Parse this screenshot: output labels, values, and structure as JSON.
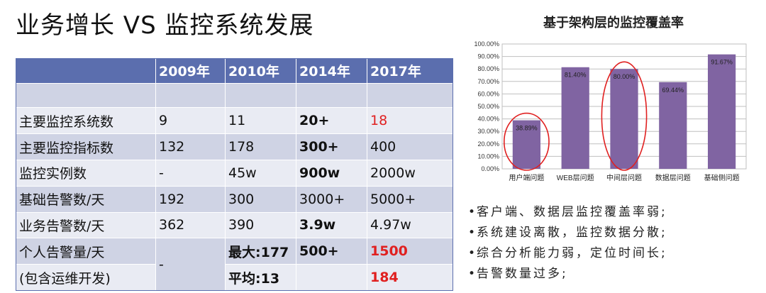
{
  "title": "业务增长 VS 监控系统发展",
  "table": {
    "headers": [
      "",
      "2009年",
      "2010年",
      "2014年",
      "2017年"
    ],
    "rows": [
      [
        "主要监控系统数",
        "9",
        "11",
        "20+",
        "18"
      ],
      [
        "主要监控指标数",
        "132",
        "178",
        "300+",
        "400"
      ],
      [
        "监控实例数",
        "-",
        "45w",
        "900w",
        "2000w"
      ],
      [
        "基础告警数/天",
        "192",
        "300",
        "3000+",
        "5000+"
      ],
      [
        "业务告警数/天",
        "362",
        "390",
        "3.9w",
        "4.97w"
      ]
    ],
    "group": {
      "label1": "个人告警量/天",
      "label2": "(包含运维开发)",
      "c2009": "-",
      "c2010_max": "最大:177",
      "c2010_avg": "平均:13",
      "c2014": "500+",
      "c2017_a": "1500",
      "c2017_b": "184"
    },
    "colors": {
      "header": "#5b6eae",
      "stripe_light": "#e9ebf3",
      "stripe_dark": "#cfd3e4",
      "highlight": "#e02020"
    }
  },
  "chart_data": {
    "type": "bar",
    "title": "基于架构层的监控覆盖率",
    "categories": [
      "用户端问题",
      "WEB层问题",
      "中间层问题",
      "数据层问题",
      "基础侧问题"
    ],
    "values": [
      38.89,
      81.4,
      80.0,
      69.44,
      91.67
    ],
    "data_labels": [
      "38.89%",
      "81.40%",
      "80.00%",
      "69.44%",
      "91.67%"
    ],
    "ylim": [
      0,
      100
    ],
    "yticks": [
      "0.00%",
      "10.00%",
      "20.00%",
      "30.00%",
      "40.00%",
      "50.00%",
      "60.00%",
      "70.00%",
      "80.00%",
      "90.00%",
      "100.00%"
    ],
    "grid": true,
    "bar_color": "#8064a2",
    "circled_categories": [
      "用户端问题",
      "中间层问题"
    ],
    "circle_color": "#e02020"
  },
  "notes": [
    "客户端、数据层监控覆盖率弱;",
    "系统建设离散，监控数据分散;",
    "综合分析能力弱，定位时间长;",
    "告警数量过多;"
  ],
  "bullet": "•"
}
